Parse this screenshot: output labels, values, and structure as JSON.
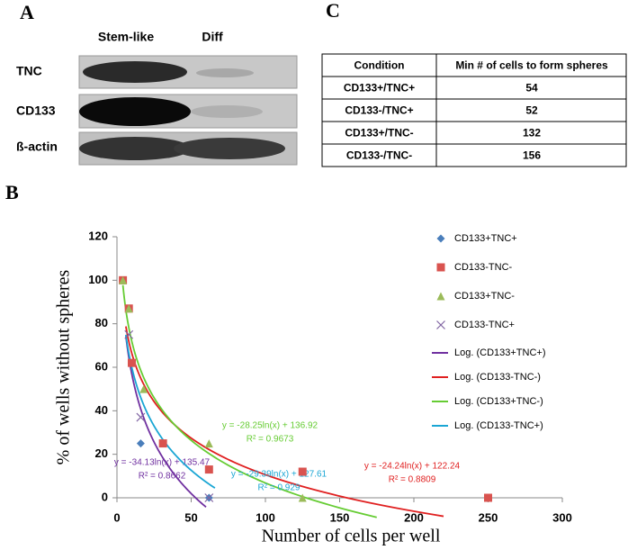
{
  "panels": {
    "a": {
      "label": "A",
      "columns": [
        "Stem-like",
        "Diff"
      ],
      "rows": [
        "TNC",
        "CD133",
        "ß-actin"
      ]
    },
    "b": {
      "label": "B"
    },
    "c": {
      "label": "C",
      "table": {
        "header": [
          "Condition",
          "Min # of cells to form spheres"
        ],
        "rows": [
          [
            "CD133+/TNC+",
            "54"
          ],
          [
            "CD133-/TNC+",
            "52"
          ],
          [
            "CD133+/TNC-",
            "132"
          ],
          [
            "CD133-/TNC-",
            "156"
          ]
        ]
      }
    }
  },
  "chart_data": {
    "type": "scatter",
    "x_label": "Number of cells per well",
    "y_label": "% of wells without spheres",
    "xlim": [
      0,
      300
    ],
    "xticks": [
      0,
      50,
      100,
      150,
      200,
      250,
      300
    ],
    "ylim": [
      0,
      120
    ],
    "yticks": [
      0,
      20,
      40,
      60,
      80,
      100,
      120
    ],
    "series": [
      {
        "name": "CD133+TNC+",
        "color": "#4a7ebb",
        "marker": "diamond",
        "x": [
          16,
          62
        ],
        "values": [
          25,
          0
        ]
      },
      {
        "name": "CD133-TNC-",
        "color": "#d9534f",
        "marker": "square",
        "x": [
          4,
          8,
          10,
          31,
          62,
          125,
          250
        ],
        "values": [
          100,
          87,
          62,
          25,
          13,
          12,
          0
        ]
      },
      {
        "name": "CD133+TNC-",
        "color": "#9bbb59",
        "marker": "triangle",
        "x": [
          4,
          8,
          18,
          62,
          125
        ],
        "values": [
          100,
          87,
          50,
          25,
          0
        ]
      },
      {
        "name": "CD133-TNC+",
        "color": "#8064a2",
        "marker": "cross",
        "x": [
          8,
          16,
          62
        ],
        "values": [
          75,
          37,
          0
        ]
      }
    ],
    "trendlines": [
      {
        "name": "Log. (CD133+TNC+)",
        "color": "#7030a0",
        "a": -34.13,
        "b": 135.47,
        "xlim": [
          6,
          60
        ],
        "equation": "y = -34.13ln(x) + 135.47",
        "r2": "R² = 0.8662"
      },
      {
        "name": "Log. (CD133-TNC-)",
        "color": "#e02020",
        "a": -24.24,
        "b": 122.24,
        "xlim": [
          6,
          220
        ],
        "equation": "y = -24.24ln(x) + 122.24",
        "r2": "R² = 0.8809"
      },
      {
        "name": "Log. (CD133+TNC-)",
        "color": "#66cc33",
        "a": -28.25,
        "b": 136.92,
        "xlim": [
          4,
          175
        ],
        "equation": "y = -28.25ln(x) + 136.92",
        "r2": "R² = 0.9673"
      },
      {
        "name": "Log. (CD133-TNC+)",
        "color": "#1aa6d4",
        "a": -29.39,
        "b": 127.61,
        "xlim": [
          6,
          66
        ],
        "equation": "y = -29.39ln(x) + 127.61",
        "r2": "R² = 0.929"
      }
    ]
  }
}
